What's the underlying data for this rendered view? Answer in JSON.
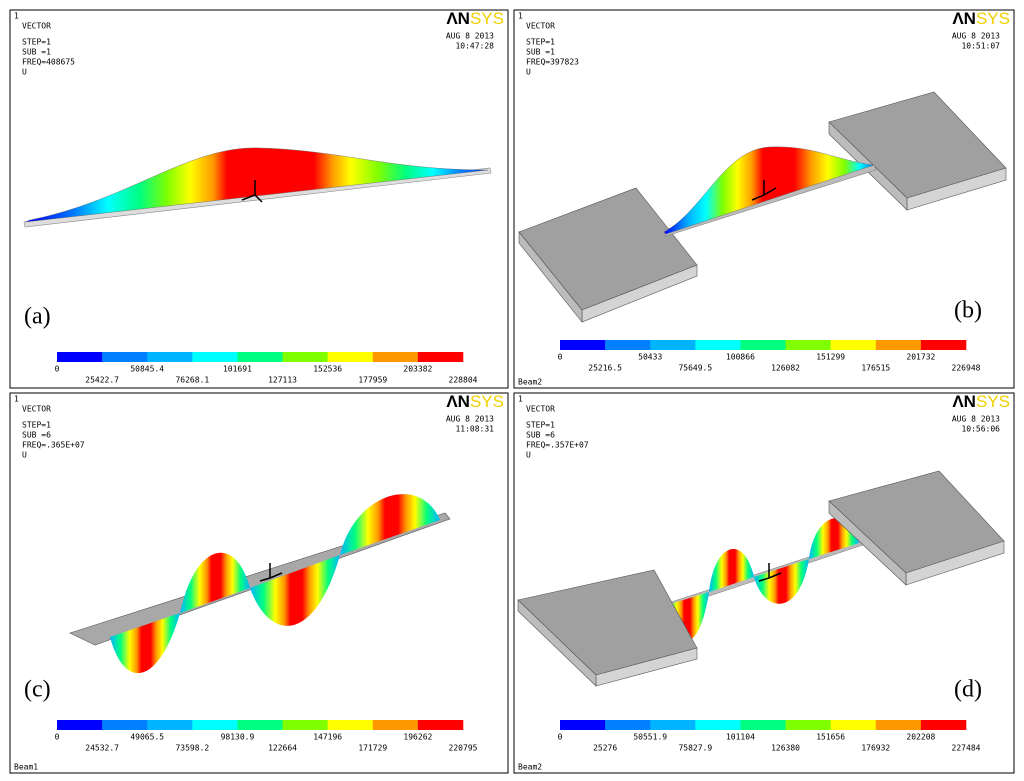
{
  "legend_colors": [
    "#0000ff",
    "#0080ff",
    "#00b4ff",
    "#00ffff",
    "#00ff80",
    "#80ff00",
    "#ffff00",
    "#ff9900",
    "#ff0000"
  ],
  "panels": [
    {
      "id": "1",
      "plot": "VECTOR",
      "step": "STEP=1",
      "sub": "SUB =1",
      "freq": "FREQ=408675",
      "quantity": "U",
      "date": "AUG  8 2013",
      "time": "10:47:28",
      "logo": {
        "dark": "ΛN",
        "light": "SYS"
      },
      "label": "(a)",
      "legend": [
        "0",
        "25422.7",
        "50845.4",
        "76268.1",
        "101691",
        "127113",
        "152536",
        "177959",
        "203382",
        "228804"
      ]
    },
    {
      "id": "1",
      "plot": "VECTOR",
      "step": "STEP=1",
      "sub": "SUB =1",
      "freq": "FREQ=397823",
      "quantity": "U",
      "date": "AUG  8 2013",
      "time": "10:51:07",
      "logo": {
        "dark": "ΛN",
        "light": "SYS"
      },
      "label": "(b)",
      "legend": [
        "0",
        "25216.5",
        "50433",
        "75649.5",
        "100866",
        "126082",
        "151299",
        "176515",
        "201732",
        "226948"
      ],
      "footer": "Beam2"
    },
    {
      "id": "1",
      "plot": "VECTOR",
      "step": "STEP=1",
      "sub": "SUB =6",
      "freq": "FREQ=.365E+07",
      "quantity": "U",
      "date": "AUG  8 2013",
      "time": "11:08:31",
      "logo": {
        "dark": "ΛN",
        "light": "SYS"
      },
      "label": "(c)",
      "legend": [
        "0",
        "24532.7",
        "49065.5",
        "73598.2",
        "98130.9",
        "122664",
        "147196",
        "171729",
        "196262",
        "220795"
      ],
      "footer": "Beam1"
    },
    {
      "id": "1",
      "plot": "VECTOR",
      "step": "STEP=1",
      "sub": "SUB =6",
      "freq": "FREQ=.357E+07",
      "quantity": "U",
      "date": "AUG  8 2013",
      "time": "10:56:06",
      "logo": {
        "dark": "ΛN",
        "light": "SYS"
      },
      "label": "(d)",
      "legend": [
        "0",
        "25276",
        "50551.9",
        "75827.9",
        "101104",
        "126380",
        "151656",
        "176932",
        "202208",
        "227484"
      ],
      "footer": "Beam2"
    }
  ]
}
